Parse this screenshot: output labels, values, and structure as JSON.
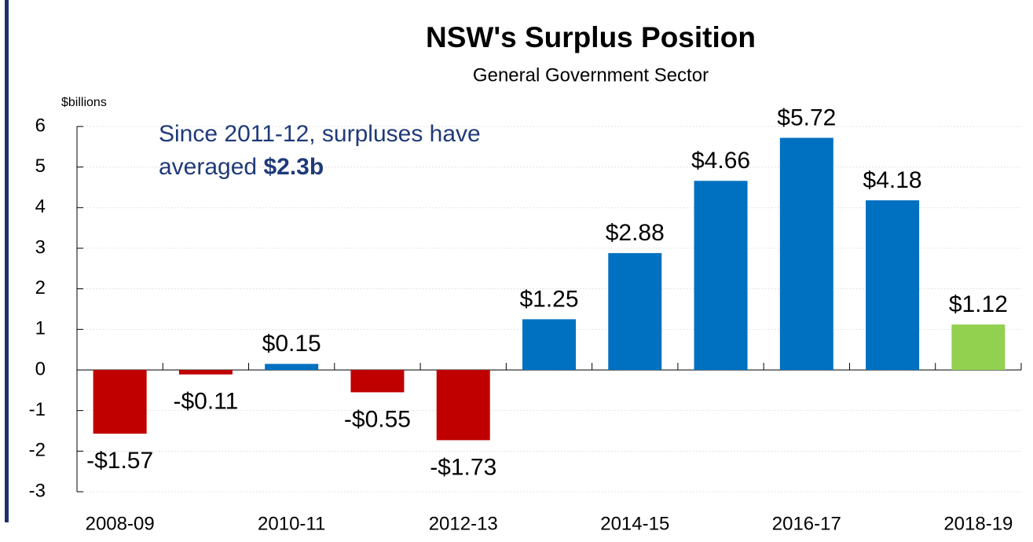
{
  "chart_data": {
    "type": "bar",
    "title": "NSW's Surplus Position",
    "subtitle": "General Government Sector",
    "y_axis_label": "$billions",
    "annotation": {
      "text": "Since 2011-12, surpluses have averaged",
      "emphasis": "$2.3b"
    },
    "categories": [
      "2008-09",
      null,
      "2010-11",
      null,
      "2012-13",
      null,
      "2014-15",
      null,
      "2016-17",
      null,
      "2018-19"
    ],
    "values": [
      -1.57,
      -0.11,
      0.15,
      -0.55,
      -1.73,
      1.25,
      2.88,
      4.66,
      5.72,
      4.18,
      1.12
    ],
    "value_labels": [
      "-$1.57",
      "-$0.11",
      "$0.15",
      "-$0.55",
      "-$1.73",
      "$1.25",
      "$2.88",
      "$4.66",
      "$5.72",
      "$4.18",
      "$1.12"
    ],
    "colors": [
      "#c00000",
      "#c00000",
      "#0070c0",
      "#c00000",
      "#c00000",
      "#0070c0",
      "#0070c0",
      "#0070c0",
      "#0070c0",
      "#0070c0",
      "#92d050"
    ],
    "ylim": [
      -3,
      6
    ],
    "yticks": [
      -3,
      -2,
      -1,
      0,
      1,
      2,
      3,
      4,
      5,
      6
    ],
    "grid": true
  }
}
